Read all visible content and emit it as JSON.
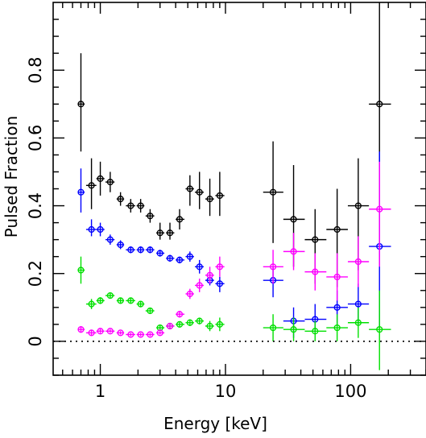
{
  "chart_data": {
    "type": "scatter",
    "title": "",
    "xlabel": "Energy [keV]",
    "ylabel": "Pulsed Fraction",
    "xscale": "log",
    "xlim": [
      0.42,
      400
    ],
    "ylim": [
      -0.1,
      1.0
    ],
    "grid": false,
    "legend": "none",
    "x_ticks": [
      {
        "value": 1,
        "label": "1"
      },
      {
        "value": 10,
        "label": "10"
      },
      {
        "value": 100,
        "label": "100"
      }
    ],
    "y_ticks": [
      {
        "value": 0,
        "label": "0"
      },
      {
        "value": 0.2,
        "label": "0.2"
      },
      {
        "value": 0.4,
        "label": "0.4"
      },
      {
        "value": 0.6,
        "label": "0.6"
      },
      {
        "value": 0.8,
        "label": "0.8"
      }
    ],
    "reference_line": {
      "y": 0,
      "style": "dotted"
    },
    "series": [
      {
        "color": "#000000",
        "points": [
          {
            "x": 0.7,
            "y": 0.7,
            "ylo": 0.56,
            "yhi": 0.85,
            "xlo": 0.66,
            "xhi": 0.75
          },
          {
            "x": 0.85,
            "y": 0.46,
            "ylo": 0.39,
            "yhi": 0.54,
            "xlo": 0.77,
            "xhi": 0.93
          },
          {
            "x": 1.0,
            "y": 0.48,
            "ylo": 0.43,
            "yhi": 0.53,
            "xlo": 0.93,
            "xhi": 1.08
          },
          {
            "x": 1.2,
            "y": 0.47,
            "ylo": 0.44,
            "yhi": 0.5,
            "xlo": 1.1,
            "xhi": 1.3
          },
          {
            "x": 1.45,
            "y": 0.42,
            "ylo": 0.4,
            "yhi": 0.44,
            "xlo": 1.35,
            "xhi": 1.55
          },
          {
            "x": 1.75,
            "y": 0.4,
            "ylo": 0.38,
            "yhi": 0.42,
            "xlo": 1.6,
            "xhi": 1.9
          },
          {
            "x": 2.1,
            "y": 0.4,
            "ylo": 0.38,
            "yhi": 0.42,
            "xlo": 1.95,
            "xhi": 2.25
          },
          {
            "x": 2.5,
            "y": 0.37,
            "ylo": 0.35,
            "yhi": 0.39,
            "xlo": 2.3,
            "xhi": 2.7
          },
          {
            "x": 3.0,
            "y": 0.32,
            "ylo": 0.3,
            "yhi": 0.35,
            "xlo": 2.8,
            "xhi": 3.25
          },
          {
            "x": 3.6,
            "y": 0.32,
            "ylo": 0.3,
            "yhi": 0.35,
            "xlo": 3.35,
            "xhi": 3.9
          },
          {
            "x": 4.3,
            "y": 0.36,
            "ylo": 0.33,
            "yhi": 0.39,
            "xlo": 4.0,
            "xhi": 4.7
          },
          {
            "x": 5.2,
            "y": 0.45,
            "ylo": 0.4,
            "yhi": 0.49,
            "xlo": 4.8,
            "xhi": 5.6
          },
          {
            "x": 6.2,
            "y": 0.44,
            "ylo": 0.39,
            "yhi": 0.5,
            "xlo": 5.7,
            "xhi": 6.7
          },
          {
            "x": 7.5,
            "y": 0.42,
            "ylo": 0.37,
            "yhi": 0.48,
            "xlo": 6.9,
            "xhi": 8.1
          },
          {
            "x": 9.0,
            "y": 0.43,
            "ylo": 0.37,
            "yhi": 0.5,
            "xlo": 8.3,
            "xhi": 9.8
          },
          {
            "x": 24,
            "y": 0.44,
            "ylo": 0.29,
            "yhi": 0.59,
            "xlo": 20,
            "xhi": 29
          },
          {
            "x": 35,
            "y": 0.36,
            "ylo": 0.22,
            "yhi": 0.52,
            "xlo": 29,
            "xhi": 43
          },
          {
            "x": 52,
            "y": 0.3,
            "ylo": 0.17,
            "yhi": 0.39,
            "xlo": 43,
            "xhi": 64
          },
          {
            "x": 78,
            "y": 0.33,
            "ylo": 0.16,
            "yhi": 0.45,
            "xlo": 64,
            "xhi": 95
          },
          {
            "x": 115,
            "y": 0.4,
            "ylo": 0.21,
            "yhi": 0.54,
            "xlo": 95,
            "xhi": 140
          },
          {
            "x": 170,
            "y": 0.7,
            "ylo": 0.25,
            "yhi": 1.0,
            "xlo": 140,
            "xhi": 210
          }
        ]
      },
      {
        "color": "#0000ff",
        "points": [
          {
            "x": 0.7,
            "y": 0.44,
            "ylo": 0.38,
            "yhi": 0.51,
            "xlo": 0.66,
            "xhi": 0.75
          },
          {
            "x": 0.85,
            "y": 0.33,
            "ylo": 0.31,
            "yhi": 0.36,
            "xlo": 0.77,
            "xhi": 0.93
          },
          {
            "x": 1.0,
            "y": 0.33,
            "ylo": 0.31,
            "yhi": 0.35,
            "xlo": 0.93,
            "xhi": 1.08
          },
          {
            "x": 1.2,
            "y": 0.3,
            "ylo": 0.285,
            "yhi": 0.315,
            "xlo": 1.1,
            "xhi": 1.3
          },
          {
            "x": 1.45,
            "y": 0.285,
            "ylo": 0.272,
            "yhi": 0.298,
            "xlo": 1.35,
            "xhi": 1.55
          },
          {
            "x": 1.75,
            "y": 0.27,
            "ylo": 0.26,
            "yhi": 0.28,
            "xlo": 1.6,
            "xhi": 1.9
          },
          {
            "x": 2.1,
            "y": 0.27,
            "ylo": 0.26,
            "yhi": 0.28,
            "xlo": 1.95,
            "xhi": 2.25
          },
          {
            "x": 2.5,
            "y": 0.27,
            "ylo": 0.26,
            "yhi": 0.28,
            "xlo": 2.3,
            "xhi": 2.7
          },
          {
            "x": 3.0,
            "y": 0.26,
            "ylo": 0.25,
            "yhi": 0.27,
            "xlo": 2.8,
            "xhi": 3.25
          },
          {
            "x": 3.6,
            "y": 0.245,
            "ylo": 0.235,
            "yhi": 0.255,
            "xlo": 3.35,
            "xhi": 3.9
          },
          {
            "x": 4.3,
            "y": 0.24,
            "ylo": 0.23,
            "yhi": 0.25,
            "xlo": 4.0,
            "xhi": 4.7
          },
          {
            "x": 5.2,
            "y": 0.25,
            "ylo": 0.235,
            "yhi": 0.265,
            "xlo": 4.8,
            "xhi": 5.6
          },
          {
            "x": 6.2,
            "y": 0.22,
            "ylo": 0.2,
            "yhi": 0.24,
            "xlo": 5.7,
            "xhi": 6.7
          },
          {
            "x": 7.5,
            "y": 0.18,
            "ylo": 0.165,
            "yhi": 0.2,
            "xlo": 6.9,
            "xhi": 8.1
          },
          {
            "x": 9.0,
            "y": 0.17,
            "ylo": 0.145,
            "yhi": 0.19,
            "xlo": 8.3,
            "xhi": 9.8
          },
          {
            "x": 24,
            "y": 0.18,
            "ylo": 0.13,
            "yhi": 0.22,
            "xlo": 20,
            "xhi": 29
          },
          {
            "x": 35,
            "y": 0.06,
            "ylo": 0.01,
            "yhi": 0.1,
            "xlo": 29,
            "xhi": 43
          },
          {
            "x": 52,
            "y": 0.065,
            "ylo": 0.02,
            "yhi": 0.11,
            "xlo": 43,
            "xhi": 64
          },
          {
            "x": 78,
            "y": 0.1,
            "ylo": 0.05,
            "yhi": 0.15,
            "xlo": 64,
            "xhi": 95
          },
          {
            "x": 115,
            "y": 0.11,
            "ylo": 0.05,
            "yhi": 0.17,
            "xlo": 95,
            "xhi": 140
          },
          {
            "x": 170,
            "y": 0.28,
            "ylo": 0.04,
            "yhi": 0.56,
            "xlo": 140,
            "xhi": 210
          }
        ]
      },
      {
        "color": "#00e000",
        "points": [
          {
            "x": 0.7,
            "y": 0.21,
            "ylo": 0.17,
            "yhi": 0.25,
            "xlo": 0.66,
            "xhi": 0.75
          },
          {
            "x": 0.85,
            "y": 0.11,
            "ylo": 0.095,
            "yhi": 0.125,
            "xlo": 0.77,
            "xhi": 0.93
          },
          {
            "x": 1.0,
            "y": 0.12,
            "ylo": 0.11,
            "yhi": 0.13,
            "xlo": 0.93,
            "xhi": 1.08
          },
          {
            "x": 1.2,
            "y": 0.135,
            "ylo": 0.128,
            "yhi": 0.142,
            "xlo": 1.1,
            "xhi": 1.3
          },
          {
            "x": 1.45,
            "y": 0.12,
            "ylo": 0.113,
            "yhi": 0.127,
            "xlo": 1.35,
            "xhi": 1.55
          },
          {
            "x": 1.75,
            "y": 0.12,
            "ylo": 0.113,
            "yhi": 0.127,
            "xlo": 1.6,
            "xhi": 1.9
          },
          {
            "x": 2.1,
            "y": 0.11,
            "ylo": 0.103,
            "yhi": 0.117,
            "xlo": 1.95,
            "xhi": 2.25
          },
          {
            "x": 2.5,
            "y": 0.09,
            "ylo": 0.083,
            "yhi": 0.097,
            "xlo": 2.3,
            "xhi": 2.7
          },
          {
            "x": 3.0,
            "y": 0.04,
            "ylo": 0.032,
            "yhi": 0.048,
            "xlo": 2.8,
            "xhi": 3.25
          },
          {
            "x": 3.6,
            "y": 0.045,
            "ylo": 0.037,
            "yhi": 0.053,
            "xlo": 3.35,
            "xhi": 3.9
          },
          {
            "x": 4.3,
            "y": 0.05,
            "ylo": 0.042,
            "yhi": 0.058,
            "xlo": 4.0,
            "xhi": 4.7
          },
          {
            "x": 5.2,
            "y": 0.055,
            "ylo": 0.045,
            "yhi": 0.065,
            "xlo": 4.8,
            "xhi": 5.6
          },
          {
            "x": 6.2,
            "y": 0.06,
            "ylo": 0.05,
            "yhi": 0.07,
            "xlo": 5.7,
            "xhi": 6.7
          },
          {
            "x": 7.5,
            "y": 0.045,
            "ylo": 0.03,
            "yhi": 0.06,
            "xlo": 6.9,
            "xhi": 8.1
          },
          {
            "x": 9.0,
            "y": 0.05,
            "ylo": 0.03,
            "yhi": 0.07,
            "xlo": 8.3,
            "xhi": 9.8
          },
          {
            "x": 24,
            "y": 0.04,
            "ylo": 0.0,
            "yhi": 0.08,
            "xlo": 20,
            "xhi": 29
          },
          {
            "x": 35,
            "y": 0.035,
            "ylo": 0.0,
            "yhi": 0.07,
            "xlo": 29,
            "xhi": 43
          },
          {
            "x": 52,
            "y": 0.03,
            "ylo": 0.0,
            "yhi": 0.06,
            "xlo": 43,
            "xhi": 64
          },
          {
            "x": 78,
            "y": 0.04,
            "ylo": 0.0,
            "yhi": 0.08,
            "xlo": 64,
            "xhi": 95
          },
          {
            "x": 115,
            "y": 0.055,
            "ylo": 0.01,
            "yhi": 0.1,
            "xlo": 95,
            "xhi": 140
          },
          {
            "x": 170,
            "y": 0.035,
            "ylo": -0.085,
            "yhi": 0.15,
            "xlo": 140,
            "xhi": 210
          }
        ]
      },
      {
        "color": "#ff00ff",
        "points": [
          {
            "x": 0.7,
            "y": 0.035,
            "ylo": 0.025,
            "yhi": 0.045,
            "xlo": 0.66,
            "xhi": 0.75
          },
          {
            "x": 0.85,
            "y": 0.025,
            "ylo": 0.018,
            "yhi": 0.032,
            "xlo": 0.77,
            "xhi": 0.93
          },
          {
            "x": 1.0,
            "y": 0.03,
            "ylo": 0.024,
            "yhi": 0.036,
            "xlo": 0.93,
            "xhi": 1.08
          },
          {
            "x": 1.2,
            "y": 0.03,
            "ylo": 0.025,
            "yhi": 0.035,
            "xlo": 1.1,
            "xhi": 1.3
          },
          {
            "x": 1.45,
            "y": 0.025,
            "ylo": 0.02,
            "yhi": 0.03,
            "xlo": 1.35,
            "xhi": 1.55
          },
          {
            "x": 1.75,
            "y": 0.02,
            "ylo": 0.015,
            "yhi": 0.025,
            "xlo": 1.6,
            "xhi": 1.9
          },
          {
            "x": 2.1,
            "y": 0.02,
            "ylo": 0.015,
            "yhi": 0.025,
            "xlo": 1.95,
            "xhi": 2.25
          },
          {
            "x": 2.5,
            "y": 0.02,
            "ylo": 0.015,
            "yhi": 0.025,
            "xlo": 2.3,
            "xhi": 2.7
          },
          {
            "x": 3.0,
            "y": 0.025,
            "ylo": 0.02,
            "yhi": 0.03,
            "xlo": 2.8,
            "xhi": 3.25
          },
          {
            "x": 3.6,
            "y": 0.045,
            "ylo": 0.038,
            "yhi": 0.052,
            "xlo": 3.35,
            "xhi": 3.9
          },
          {
            "x": 4.3,
            "y": 0.08,
            "ylo": 0.07,
            "yhi": 0.09,
            "xlo": 4.0,
            "xhi": 4.7
          },
          {
            "x": 5.2,
            "y": 0.14,
            "ylo": 0.125,
            "yhi": 0.155,
            "xlo": 4.8,
            "xhi": 5.6
          },
          {
            "x": 6.2,
            "y": 0.165,
            "ylo": 0.145,
            "yhi": 0.185,
            "xlo": 5.7,
            "xhi": 6.7
          },
          {
            "x": 7.5,
            "y": 0.195,
            "ylo": 0.17,
            "yhi": 0.22,
            "xlo": 6.9,
            "xhi": 8.1
          },
          {
            "x": 9.0,
            "y": 0.22,
            "ylo": 0.19,
            "yhi": 0.25,
            "xlo": 8.3,
            "xhi": 9.8
          },
          {
            "x": 24,
            "y": 0.22,
            "ylo": 0.17,
            "yhi": 0.27,
            "xlo": 20,
            "xhi": 29
          },
          {
            "x": 35,
            "y": 0.265,
            "ylo": 0.21,
            "yhi": 0.32,
            "xlo": 29,
            "xhi": 43
          },
          {
            "x": 52,
            "y": 0.205,
            "ylo": 0.15,
            "yhi": 0.26,
            "xlo": 43,
            "xhi": 64
          },
          {
            "x": 78,
            "y": 0.19,
            "ylo": 0.12,
            "yhi": 0.26,
            "xlo": 64,
            "xhi": 95
          },
          {
            "x": 115,
            "y": 0.235,
            "ylo": 0.16,
            "yhi": 0.31,
            "xlo": 95,
            "xhi": 140
          },
          {
            "x": 170,
            "y": 0.39,
            "ylo": 0.22,
            "yhi": 0.53,
            "xlo": 140,
            "xhi": 210
          }
        ]
      }
    ]
  }
}
